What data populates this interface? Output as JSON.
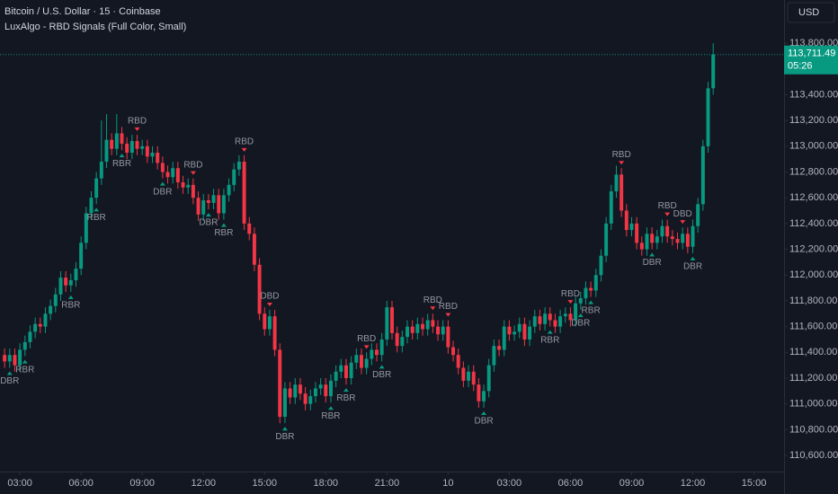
{
  "chart_data": {
    "type": "candlestick",
    "title": "Bitcoin / U.S. Dollar · 15 · Coinbase",
    "subtitle": "LuxAlgo - RBD Signals (Full Color, Small)",
    "currency": "USD",
    "up_color": "#089981",
    "down_color": "#f23645",
    "countdown": "05:26",
    "last_price": {
      "value": 113711.49,
      "label": "113,711.49"
    },
    "xlim": [
      -0.9,
      152.9
    ],
    "ylim": [
      110475,
      114135
    ],
    "grid": false,
    "xticks": [
      {
        "value": 3,
        "label": "03:00"
      },
      {
        "value": 15,
        "label": "06:00"
      },
      {
        "value": 27,
        "label": "09:00"
      },
      {
        "value": 39,
        "label": "12:00"
      },
      {
        "value": 51,
        "label": "15:00"
      },
      {
        "value": 63,
        "label": "18:00"
      },
      {
        "value": 75,
        "label": "21:00"
      },
      {
        "value": 87,
        "label": "10"
      },
      {
        "value": 99,
        "label": "03:00"
      },
      {
        "value": 111,
        "label": "06:00"
      },
      {
        "value": 123,
        "label": "09:00"
      },
      {
        "value": 135,
        "label": "12:00"
      },
      {
        "value": 147,
        "label": "15:00"
      }
    ],
    "yticks": [
      {
        "value": 110600,
        "label": "110,600.00"
      },
      {
        "value": 110800,
        "label": "110,800.00"
      },
      {
        "value": 111000,
        "label": "111,000.00"
      },
      {
        "value": 111200,
        "label": "111,200.00"
      },
      {
        "value": 111400,
        "label": "111,400.00"
      },
      {
        "value": 111600,
        "label": "111,600.00"
      },
      {
        "value": 111800,
        "label": "111,800.00"
      },
      {
        "value": 112000,
        "label": "112,000.00"
      },
      {
        "value": 112200,
        "label": "112,200.00"
      },
      {
        "value": 112400,
        "label": "112,400.00"
      },
      {
        "value": 112600,
        "label": "112,600.00"
      },
      {
        "value": 112800,
        "label": "112,800.00"
      },
      {
        "value": 113000,
        "label": "113,000.00"
      },
      {
        "value": 113200,
        "label": "113,200.00"
      },
      {
        "value": 113400,
        "label": "113,400.00"
      },
      {
        "value": 113800,
        "label": "113,800.00"
      }
    ],
    "open": [
      111380,
      111330,
      111380,
      111300,
      111420,
      111480,
      111560,
      111620,
      111600,
      111700,
      111760,
      111850,
      111980,
      111920,
      111960,
      112050,
      112250,
      112480,
      112600,
      112750,
      112880,
      113050,
      112980,
      113100,
      113020,
      112950,
      113040,
      112980,
      113000,
      112920,
      112950,
      112870,
      112800,
      112760,
      112830,
      112720,
      112680,
      112700,
      112600,
      112470,
      112580,
      112560,
      112620,
      112480,
      112620,
      112700,
      112820,
      112880,
      112400,
      112320,
      112080,
      111700,
      111580,
      111680,
      111420,
      110900,
      111120,
      111050,
      111150,
      111080,
      111000,
      111060,
      111120,
      111150,
      111060,
      111180,
      111250,
      111300,
      111200,
      111320,
      111380,
      111280,
      111350,
      111420,
      111380,
      111500,
      111750,
      111550,
      111450,
      111520,
      111600,
      111550,
      111620,
      111580,
      111650,
      111600,
      111540,
      111600,
      111440,
      111380,
      111280,
      111180,
      111250,
      111150,
      111020,
      111100,
      111300,
      111450,
      111420,
      111600,
      111540,
      111560,
      111620,
      111500,
      111600,
      111680,
      111620,
      111700,
      111650,
      111600,
      111680,
      111700,
      111650,
      111780,
      111820,
      111900,
      111880,
      112000,
      112150,
      112400,
      112650,
      112780,
      112500,
      112350,
      112400,
      112250,
      112200,
      112320,
      112250,
      112300,
      112380,
      112300,
      112280,
      112250,
      112320,
      112220,
      112380,
      112550,
      113000,
      113450
    ],
    "high": [
      111430,
      111430,
      111430,
      111470,
      111530,
      111610,
      111670,
      111670,
      111750,
      111810,
      111900,
      112030,
      112030,
      112010,
      112100,
      112300,
      112530,
      112650,
      112800,
      113200,
      113250,
      113100,
      113250,
      113150,
      113070,
      113090,
      113090,
      113050,
      113050,
      113000,
      113000,
      112920,
      112850,
      112880,
      112880,
      112770,
      112750,
      112750,
      112650,
      112630,
      112630,
      112670,
      112670,
      112670,
      112750,
      112870,
      112930,
      112930,
      112450,
      112370,
      112130,
      111750,
      111730,
      111730,
      111470,
      111170,
      111170,
      111200,
      111200,
      111130,
      111110,
      111170,
      111200,
      111200,
      111230,
      111300,
      111350,
      111350,
      111370,
      111430,
      111430,
      111400,
      111470,
      111470,
      111550,
      111800,
      111800,
      111600,
      111570,
      111650,
      111650,
      111670,
      111670,
      111700,
      111700,
      111650,
      111650,
      111650,
      111490,
      111430,
      111330,
      111300,
      111300,
      111200,
      111150,
      111350,
      111500,
      111500,
      111650,
      111650,
      111610,
      111670,
      111670,
      111650,
      111730,
      111730,
      111750,
      111750,
      111700,
      111730,
      111750,
      111750,
      111830,
      111870,
      111950,
      111950,
      112050,
      112200,
      112450,
      112700,
      112850,
      112830,
      112550,
      112450,
      112450,
      112300,
      112370,
      112370,
      112350,
      112430,
      112430,
      112350,
      112330,
      112370,
      112370,
      112430,
      112600,
      113050,
      113500,
      113800
    ],
    "low": [
      111280,
      111280,
      111250,
      111250,
      111370,
      111430,
      111510,
      111550,
      111550,
      111650,
      111710,
      111800,
      111870,
      111870,
      111910,
      112000,
      112200,
      112430,
      112550,
      112700,
      112830,
      112930,
      112930,
      112970,
      112900,
      112900,
      112930,
      112930,
      112870,
      112870,
      112820,
      112750,
      112710,
      112710,
      112670,
      112630,
      112630,
      112550,
      112420,
      112420,
      112510,
      112510,
      112430,
      112430,
      112570,
      112650,
      112770,
      112350,
      112270,
      112030,
      111650,
      111530,
      111530,
      111370,
      110850,
      110850,
      111000,
      111000,
      111030,
      110950,
      110950,
      111010,
      111070,
      111010,
      111010,
      111130,
      111200,
      111150,
      111150,
      111270,
      111230,
      111230,
      111300,
      111330,
      111330,
      111450,
      111500,
      111400,
      111400,
      111470,
      111500,
      111500,
      111530,
      111530,
      111550,
      111490,
      111490,
      111390,
      111330,
      111230,
      111130,
      111130,
      111100,
      110970,
      110970,
      111050,
      111250,
      111370,
      111370,
      111490,
      111490,
      111510,
      111450,
      111450,
      111550,
      111570,
      111570,
      111600,
      111550,
      111550,
      111630,
      111600,
      111600,
      111730,
      111770,
      111830,
      111830,
      111950,
      112100,
      112350,
      112600,
      112450,
      112300,
      112300,
      112200,
      112150,
      112150,
      112200,
      112200,
      112250,
      112250,
      112230,
      112200,
      112200,
      112170,
      112170,
      112330,
      112500,
      112950,
      113400
    ],
    "close": [
      111330,
      111380,
      111300,
      111420,
      111480,
      111560,
      111620,
      111600,
      111700,
      111760,
      111850,
      111980,
      111920,
      111960,
      112050,
      112250,
      112480,
      112600,
      112750,
      112880,
      113050,
      112980,
      113100,
      113020,
      112950,
      113040,
      112980,
      113000,
      112920,
      112950,
      112870,
      112800,
      112760,
      112830,
      112720,
      112680,
      112700,
      112600,
      112470,
      112580,
      112560,
      112620,
      112480,
      112620,
      112700,
      112820,
      112880,
      112400,
      112320,
      112080,
      111700,
      111580,
      111680,
      111420,
      110900,
      111120,
      111050,
      111150,
      111080,
      111000,
      111060,
      111120,
      111150,
      111060,
      111180,
      111250,
      111300,
      111200,
      111320,
      111380,
      111280,
      111350,
      111420,
      111380,
      111500,
      111750,
      111550,
      111450,
      111520,
      111600,
      111550,
      111620,
      111580,
      111650,
      111600,
      111540,
      111600,
      111440,
      111380,
      111280,
      111180,
      111250,
      111150,
      111020,
      111100,
      111300,
      111450,
      111420,
      111600,
      111540,
      111560,
      111620,
      111500,
      111600,
      111680,
      111620,
      111700,
      111650,
      111600,
      111680,
      111700,
      111650,
      111780,
      111820,
      111900,
      111880,
      112000,
      112150,
      112400,
      112650,
      112780,
      112500,
      112350,
      112400,
      112250,
      112200,
      112320,
      112250,
      112300,
      112380,
      112300,
      112280,
      112250,
      112320,
      112220,
      112380,
      112550,
      113000,
      113450,
      113711.49
    ],
    "signals": [
      {
        "index": 1,
        "label": "DBR"
      },
      {
        "index": 4,
        "label": "RBR"
      },
      {
        "index": 13,
        "label": "RBR"
      },
      {
        "index": 18,
        "label": "RBR"
      },
      {
        "index": 23,
        "label": "RBR"
      },
      {
        "index": 26,
        "label": "RBD"
      },
      {
        "index": 31,
        "label": "DBR"
      },
      {
        "index": 37,
        "label": "RBD"
      },
      {
        "index": 40,
        "label": "DBR"
      },
      {
        "index": 43,
        "label": "RBR"
      },
      {
        "index": 47,
        "label": "RBD"
      },
      {
        "index": 52,
        "label": "DBD"
      },
      {
        "index": 55,
        "label": "DBR"
      },
      {
        "index": 64,
        "label": "RBR"
      },
      {
        "index": 67,
        "label": "RBR"
      },
      {
        "index": 71,
        "label": "RBD"
      },
      {
        "index": 74,
        "label": "DBR"
      },
      {
        "index": 84,
        "label": "RBD"
      },
      {
        "index": 87,
        "label": "RBD"
      },
      {
        "index": 94,
        "label": "DBR"
      },
      {
        "index": 107,
        "label": "RBR"
      },
      {
        "index": 111,
        "label": "RBD"
      },
      {
        "index": 113,
        "label": "DBR"
      },
      {
        "index": 115,
        "label": "RBR"
      },
      {
        "index": 121,
        "label": "RBD"
      },
      {
        "index": 127,
        "label": "DBR"
      },
      {
        "index": 130,
        "label": "RBD"
      },
      {
        "index": 133,
        "label": "DBD"
      },
      {
        "index": 135,
        "label": "DBR"
      }
    ]
  }
}
